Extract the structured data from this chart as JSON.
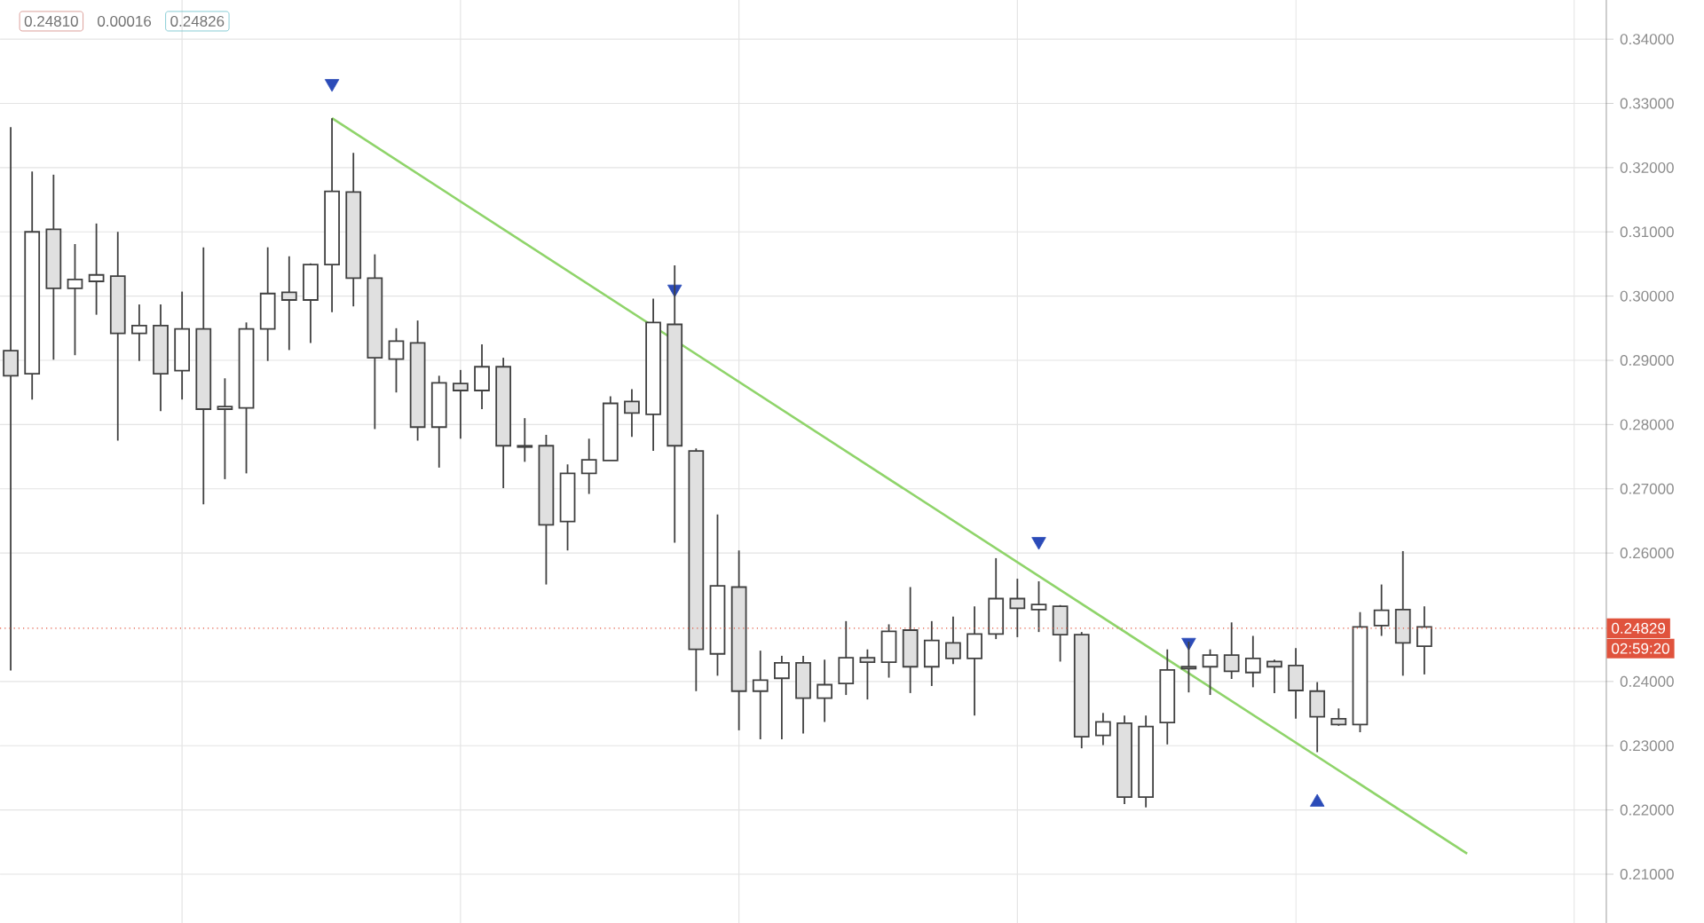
{
  "chart_data": {
    "type": "candlestick",
    "categories": [
      null,
      null,
      null,
      null,
      null,
      null,
      null,
      null,
      null,
      null,
      null,
      null,
      null,
      null,
      null,
      null,
      null,
      null,
      null,
      null,
      null,
      null,
      null,
      null,
      null,
      null,
      null,
      null,
      null,
      null,
      null,
      null,
      null,
      null,
      null,
      null,
      null,
      null,
      null,
      null,
      null,
      null,
      null,
      null,
      null,
      null,
      null,
      null,
      null,
      null,
      null,
      null,
      null,
      null,
      null,
      null,
      null,
      null,
      null,
      null,
      null,
      null,
      null,
      null,
      null,
      null,
      null,
      null,
      null,
      null,
      null,
      null,
      null,
      null,
      null
    ],
    "ohlc": [
      [
        0.2915,
        0.3263,
        0.2417,
        0.2876
      ],
      [
        0.2879,
        0.3194,
        0.2839,
        0.31
      ],
      [
        0.3104,
        0.3189,
        0.2901,
        0.3012
      ],
      [
        0.3012,
        0.3081,
        0.2908,
        0.3026
      ],
      [
        0.3023,
        0.3113,
        0.2971,
        0.3033
      ],
      [
        0.3031,
        0.31,
        0.2775,
        0.2942
      ],
      [
        0.2942,
        0.2987,
        0.2899,
        0.2954
      ],
      [
        0.2954,
        0.2987,
        0.2821,
        0.2879
      ],
      [
        0.2884,
        0.3007,
        0.2839,
        0.2949
      ],
      [
        0.2949,
        0.3076,
        0.2676,
        0.2824
      ],
      [
        0.2824,
        0.2872,
        0.2715,
        0.2828
      ],
      [
        0.2826,
        0.2959,
        0.2724,
        0.2949
      ],
      [
        0.2949,
        0.3076,
        0.2899,
        0.3004
      ],
      [
        0.3006,
        0.3062,
        0.2916,
        0.2994
      ],
      [
        0.2994,
        0.3051,
        0.2927,
        0.3049
      ],
      [
        0.3049,
        0.3277,
        0.2975,
        0.3163
      ],
      [
        0.3162,
        0.3223,
        0.2984,
        0.3028
      ],
      [
        0.3028,
        0.3065,
        0.2793,
        0.2904
      ],
      [
        0.2902,
        0.295,
        0.285,
        0.293
      ],
      [
        0.2927,
        0.2962,
        0.2775,
        0.2796
      ],
      [
        0.2796,
        0.2876,
        0.2733,
        0.2865
      ],
      [
        0.2864,
        0.2885,
        0.2778,
        0.2853
      ],
      [
        0.2853,
        0.2925,
        0.2824,
        0.289
      ],
      [
        0.289,
        0.2904,
        0.2701,
        0.2767
      ],
      [
        0.2767,
        0.281,
        0.2742,
        0.2765
      ],
      [
        0.2767,
        0.2784,
        0.2551,
        0.2644
      ],
      [
        0.2649,
        0.2738,
        0.2604,
        0.2724
      ],
      [
        0.2724,
        0.2778,
        0.2692,
        0.2745
      ],
      [
        0.2744,
        0.2844,
        0.2744,
        0.2833
      ],
      [
        0.2836,
        0.2855,
        0.2781,
        0.2818
      ],
      [
        0.2816,
        0.2996,
        0.2759,
        0.2959
      ],
      [
        0.2956,
        0.3048,
        0.2616,
        0.2767
      ],
      [
        0.2759,
        0.2763,
        0.2385,
        0.245
      ],
      [
        0.2443,
        0.266,
        0.2409,
        0.2549
      ],
      [
        0.2547,
        0.2604,
        0.2324,
        0.2385
      ],
      [
        0.2385,
        0.2448,
        0.231,
        0.2402
      ],
      [
        0.2405,
        0.244,
        0.231,
        0.2429
      ],
      [
        0.2429,
        0.244,
        0.2319,
        0.2374
      ],
      [
        0.2374,
        0.2434,
        0.2337,
        0.2395
      ],
      [
        0.2397,
        0.2494,
        0.2379,
        0.2437
      ],
      [
        0.2437,
        0.245,
        0.2372,
        0.243
      ],
      [
        0.243,
        0.2489,
        0.2406,
        0.2478
      ],
      [
        0.248,
        0.2547,
        0.2382,
        0.2423
      ],
      [
        0.2423,
        0.2494,
        0.2393,
        0.2464
      ],
      [
        0.246,
        0.2501,
        0.2427,
        0.2436
      ],
      [
        0.2436,
        0.2517,
        0.2347,
        0.2474
      ],
      [
        0.2474,
        0.2592,
        0.2466,
        0.2529
      ],
      [
        0.2529,
        0.256,
        0.2469,
        0.2514
      ],
      [
        0.2512,
        0.2556,
        0.2477,
        0.252
      ],
      [
        0.2517,
        0.2519,
        0.2431,
        0.2473
      ],
      [
        0.2473,
        0.2477,
        0.2296,
        0.2314
      ],
      [
        0.2316,
        0.2351,
        0.2301,
        0.2337
      ],
      [
        0.2335,
        0.2347,
        0.2209,
        0.222
      ],
      [
        0.222,
        0.2347,
        0.2204,
        0.233
      ],
      [
        0.2336,
        0.245,
        0.2302,
        0.2418
      ],
      [
        0.242,
        0.2462,
        0.2383,
        0.2423
      ],
      [
        0.2423,
        0.245,
        0.2379,
        0.2441
      ],
      [
        0.2441,
        0.2492,
        0.2404,
        0.2416
      ],
      [
        0.2414,
        0.2471,
        0.2391,
        0.2436
      ],
      [
        0.2431,
        0.2434,
        0.2382,
        0.2423
      ],
      [
        0.2425,
        0.2452,
        0.2342,
        0.2386
      ],
      [
        0.2385,
        0.2399,
        0.229,
        0.2345
      ],
      [
        0.2342,
        0.2358,
        0.2331,
        0.2333
      ],
      [
        0.2333,
        0.2508,
        0.2321,
        0.2485
      ],
      [
        0.2487,
        0.2551,
        0.2471,
        0.2511
      ],
      [
        0.2512,
        0.2603,
        0.2409,
        0.246
      ],
      [
        0.2455,
        0.2517,
        0.2411,
        0.2485
      ],
      null,
      null,
      null,
      null,
      null,
      null,
      null,
      null
    ],
    "series": [
      {
        "type": "line",
        "color": "#8fd46a",
        "values": [
          null,
          null,
          null,
          null,
          null,
          null,
          null,
          null,
          null,
          null,
          null,
          null,
          null,
          null,
          null,
          0.3277,
          null,
          null,
          null,
          null,
          null,
          null,
          null,
          null,
          null,
          null,
          null,
          null,
          null,
          null,
          null,
          null,
          null,
          null,
          null,
          null,
          null,
          null,
          null,
          null,
          null,
          null,
          null,
          null,
          null,
          null,
          null,
          null,
          null,
          null,
          null,
          null,
          null,
          null,
          null,
          null,
          null,
          null,
          null,
          null,
          null,
          null,
          null,
          null,
          null,
          null,
          null,
          null,
          0.2132,
          null,
          null,
          null,
          null,
          null,
          null
        ]
      },
      {
        "type": "scatter",
        "color": "#2b4bb8",
        "marker": "triangle",
        "values": [
          null,
          null,
          null,
          null,
          null,
          null,
          null,
          null,
          null,
          null,
          null,
          null,
          null,
          null,
          null,
          0.3331,
          null,
          null,
          null,
          null,
          null,
          null,
          null,
          null,
          null,
          null,
          null,
          null,
          null,
          null,
          null,
          0.3011,
          null,
          null,
          null,
          null,
          null,
          null,
          null,
          null,
          null,
          null,
          null,
          null,
          null,
          null,
          null,
          null,
          0.2618,
          null,
          null,
          null,
          null,
          null,
          null,
          0.2461,
          null,
          null,
          null,
          null,
          null,
          0.2212,
          null,
          null,
          null,
          null,
          null,
          null,
          null,
          null,
          null,
          null,
          null,
          null,
          null
        ]
      }
    ],
    "ylim": [
      0.2024,
      0.3461
    ],
    "yticks": [
      {
        "value": 0.21,
        "label": "0.21000"
      },
      {
        "value": 0.22,
        "label": "0.22000"
      },
      {
        "value": 0.23,
        "label": "0.23000"
      },
      {
        "value": 0.24,
        "label": "0.24000"
      },
      {
        "value": 0.26,
        "label": "0.26000"
      },
      {
        "value": 0.27,
        "label": "0.27000"
      },
      {
        "value": 0.28,
        "label": "0.28000"
      },
      {
        "value": 0.29,
        "label": "0.29000"
      },
      {
        "value": 0.3,
        "label": "0.30000"
      },
      {
        "value": 0.31,
        "label": "0.31000"
      },
      {
        "value": 0.32,
        "label": "0.32000"
      },
      {
        "value": 0.33,
        "label": "0.33000"
      },
      {
        "value": 0.34,
        "label": "0.34000"
      }
    ],
    "ref_lines": [
      {
        "axis": "y",
        "value": 0.24829,
        "label": "0.24829",
        "color": "#e0533d",
        "line_style": "dotted"
      }
    ],
    "annotations": [
      "0.24810",
      "0.00016",
      "0.24826",
      "02:59:20"
    ],
    "grid": true,
    "tick_labels": "y"
  }
}
